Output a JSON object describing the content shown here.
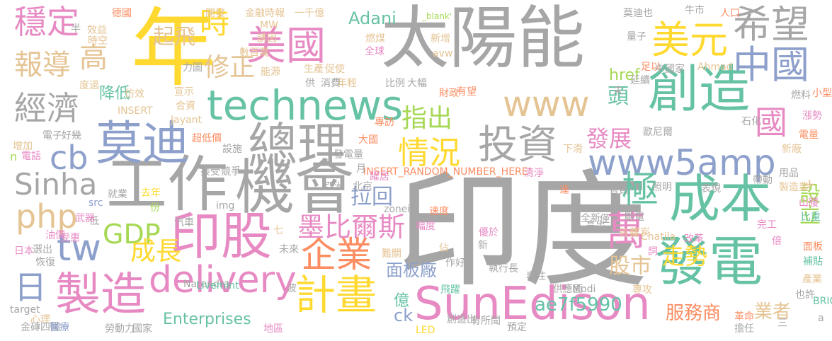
{
  "cloud": {
    "colors": {
      "gray": "#a6a6a6",
      "green": "#66c2a5",
      "orange": "#fc8d62",
      "blue": "#8da0cb",
      "pink": "#e78ac3",
      "lime": "#a6d854",
      "yellow": "#ffd92f",
      "tan": "#e5c494"
    },
    "words": [
      {
        "text": "印度",
        "color": "gray"
      },
      {
        "text": "太陽能",
        "color": "gray"
      },
      {
        "text": "年",
        "color": "yellow"
      },
      {
        "text": "發電",
        "color": "green"
      },
      {
        "text": "工作",
        "color": "gray"
      },
      {
        "text": "機會",
        "color": "gray"
      },
      {
        "text": "technews",
        "color": "green"
      },
      {
        "text": "總理",
        "color": "gray"
      },
      {
        "text": "莫迪",
        "color": "blue"
      },
      {
        "text": "創造",
        "color": "green"
      },
      {
        "text": "成本",
        "color": "green"
      },
      {
        "text": "印股",
        "color": "pink"
      },
      {
        "text": "SunEdison",
        "color": "pink"
      },
      {
        "text": "delivery",
        "color": "pink"
      },
      {
        "text": "製造",
        "color": "pink"
      },
      {
        "text": "www5amp",
        "color": "blue"
      },
      {
        "text": "www",
        "color": "tan"
      },
      {
        "text": "美國",
        "color": "pink"
      },
      {
        "text": "美元",
        "color": "yellow"
      },
      {
        "text": "希望",
        "color": "gray"
      },
      {
        "text": "中國",
        "color": "blue"
      },
      {
        "text": "投資",
        "color": "gray"
      },
      {
        "text": "計畫",
        "color": "yellow"
      },
      {
        "text": "企業",
        "color": "orange"
      },
      {
        "text": "穩定",
        "color": "pink"
      },
      {
        "text": "經濟",
        "color": "gray"
      },
      {
        "text": "報導",
        "color": "tan"
      },
      {
        "text": "高",
        "color": "tan"
      },
      {
        "text": "時",
        "color": "yellow"
      },
      {
        "text": "修正",
        "color": "tan"
      },
      {
        "text": "起飛",
        "color": "tan"
      },
      {
        "text": "php",
        "color": "tan"
      },
      {
        "text": "Sinha",
        "color": "gray"
      },
      {
        "text": "cb",
        "color": "blue"
      },
      {
        "text": "tw",
        "color": "blue"
      },
      {
        "text": "日",
        "color": "blue"
      },
      {
        "text": "GDP",
        "color": "lime"
      },
      {
        "text": "成長",
        "color": "yellow"
      },
      {
        "text": "情況",
        "color": "yellow"
      },
      {
        "text": "指出",
        "color": "lime"
      },
      {
        "text": "墨比爾斯",
        "color": "pink"
      },
      {
        "text": "拉回",
        "color": "blue"
      },
      {
        "text": "萬",
        "color": "pink"
      },
      {
        "text": "極",
        "color": "green"
      },
      {
        "text": "國",
        "color": "pink"
      },
      {
        "text": "頭",
        "color": "green"
      },
      {
        "text": "發展",
        "color": "pink"
      },
      {
        "text": "股市",
        "color": "tan"
      },
      {
        "text": "走勢",
        "color": "yellow"
      },
      {
        "text": "ae7f5990",
        "color": "green"
      },
      {
        "text": "服務商",
        "color": "orange"
      },
      {
        "text": "業者",
        "color": "tan"
      },
      {
        "text": "設立",
        "color": "lime"
      },
      {
        "text": "面板廠",
        "color": "blue"
      },
      {
        "text": "Enterprises",
        "color": "green"
      },
      {
        "text": "Adani",
        "color": "green"
      },
      {
        "text": "href",
        "color": "lime"
      },
      {
        "text": "降低",
        "color": "green"
      },
      {
        "text": "ck",
        "color": "blue"
      },
      {
        "text": "億",
        "color": "green"
      },
      {
        "text": "INSERT_RANDOM_NUMBER_HERE'",
        "color": "orange"
      },
      {
        "text": "開發",
        "color": "tan"
      },
      {
        "text": "金融時報",
        "color": "tan"
      },
      {
        "text": "一千億",
        "color": "tan"
      },
      {
        "text": "_blank'",
        "color": "lime"
      },
      {
        "text": "莫迪也",
        "color": "gray"
      },
      {
        "text": "牛市",
        "color": "gray"
      },
      {
        "text": "人口",
        "color": "orange"
      },
      {
        "text": "德國",
        "color": "orange"
      },
      {
        "text": "半",
        "color": "gray"
      },
      {
        "text": "效益",
        "color": "tan"
      },
      {
        "text": "時空",
        "color": "tan"
      },
      {
        "text": "MW",
        "color": "tan"
      },
      {
        "text": "誘因",
        "color": "tan"
      },
      {
        "text": "數百萬",
        "color": "tan"
      },
      {
        "text": "燃煤",
        "color": "tan"
      },
      {
        "text": "全球",
        "color": "pink"
      },
      {
        "text": "新增",
        "color": "tan"
      },
      {
        "text": "avw",
        "color": "tan"
      },
      {
        "text": "量子",
        "color": "gray"
      },
      {
        "text": "力圖",
        "color": "gray"
      },
      {
        "text": "能源",
        "color": "tan"
      },
      {
        "text": "生產",
        "color": "tan"
      },
      {
        "text": "促使",
        "color": "tan"
      },
      {
        "text": "年輕",
        "color": "tan"
      },
      {
        "text": "足以",
        "color": "orange"
      },
      {
        "text": "中國家",
        "color": "gray"
      },
      {
        "text": "Ahmad",
        "color": "tan"
      },
      {
        "text": "度過",
        "color": "tan"
      },
      {
        "text": "仿效",
        "color": "tan"
      },
      {
        "text": "宣示",
        "color": "tan"
      },
      {
        "text": "合資",
        "color": "tan"
      },
      {
        "text": "INSERT",
        "color": "tan"
      },
      {
        "text": "供",
        "color": "gray"
      },
      {
        "text": "消費",
        "color": "gray"
      },
      {
        "text": "比例",
        "color": "gray"
      },
      {
        "text": "大幅",
        "color": "gray"
      },
      {
        "text": "財政",
        "color": "orange"
      },
      {
        "text": "有望",
        "color": "orange"
      },
      {
        "text": "未",
        "color": "gray"
      },
      {
        "text": "延續",
        "color": "gray"
      },
      {
        "text": "燃料",
        "color": "gray"
      },
      {
        "text": "小型",
        "color": "orange"
      },
      {
        "text": "Jayant",
        "color": "tan"
      },
      {
        "text": "電子",
        "color": "gray"
      },
      {
        "text": "好幾",
        "color": "gray"
      },
      {
        "text": "超低價",
        "color": "orange"
      },
      {
        "text": "設施",
        "color": "gray"
      },
      {
        "text": "大國",
        "color": "orange"
      },
      {
        "text": "專訪",
        "color": "orange"
      },
      {
        "text": "發電量",
        "color": "gray"
      },
      {
        "text": "月",
        "color": "gray"
      },
      {
        "text": "躍居",
        "color": "pink"
      },
      {
        "text": "歐尼爾",
        "color": "gray"
      },
      {
        "text": "石化",
        "color": "gray"
      },
      {
        "text": "漲勢",
        "color": "pink"
      },
      {
        "text": "電量",
        "color": "orange"
      },
      {
        "text": "增加",
        "color": "tan"
      },
      {
        "text": "n",
        "color": "lime"
      },
      {
        "text": "電話",
        "color": "pink"
      },
      {
        "text": "下滑",
        "color": "tan"
      },
      {
        "text": "新廠",
        "color": "tan"
      },
      {
        "text": "接受",
        "color": "gray"
      },
      {
        "text": "競爭",
        "color": "gray"
      },
      {
        "text": "亞洲",
        "color": "gray"
      },
      {
        "text": "北京",
        "color": "gray"
      },
      {
        "text": "清淨",
        "color": "pink"
      },
      {
        "text": "達",
        "color": "orange"
      },
      {
        "text": "官員",
        "color": "gray"
      },
      {
        "text": "照明",
        "color": "gray"
      },
      {
        "text": "表現",
        "color": "gray"
      },
      {
        "text": "帶動",
        "color": "gray"
      },
      {
        "text": "用品",
        "color": "gray"
      },
      {
        "text": "製造業",
        "color": "tan"
      },
      {
        "text": "山腰",
        "color": "pink"
      },
      {
        "text": "就業",
        "color": "gray"
      },
      {
        "text": "去年",
        "color": "yellow"
      },
      {
        "text": "src",
        "color": "blue"
      },
      {
        "text": "低",
        "color": "gray"
      },
      {
        "text": "武器",
        "color": "pink"
      },
      {
        "text": "份",
        "color": "lime"
      },
      {
        "text": "img",
        "color": "gray"
      },
      {
        "text": "zoneid",
        "color": "gray"
      },
      {
        "text": "汽車",
        "color": "gray"
      },
      {
        "text": "速度",
        "color": "orange"
      },
      {
        "text": "全新",
        "color": "gray"
      },
      {
        "text": "僅",
        "color": "gray"
      },
      {
        "text": "斷電",
        "color": "gray"
      },
      {
        "text": "煤炭",
        "color": "tan"
      },
      {
        "text": "比重",
        "color": "green"
      },
      {
        "text": "油價",
        "color": "pink"
      },
      {
        "text": "受惠",
        "color": "pink"
      },
      {
        "text": "七",
        "color": "tan"
      },
      {
        "text": "幅度",
        "color": "pink"
      },
      {
        "text": "優於",
        "color": "pink"
      },
      {
        "text": "新",
        "color": "gray"
      },
      {
        "text": "高出",
        "color": "gray"
      },
      {
        "text": "背景",
        "color": "tan"
      },
      {
        "text": "Chatila",
        "color": "tan"
      },
      {
        "text": "改革",
        "color": "pink"
      },
      {
        "text": "完工",
        "color": "pink"
      },
      {
        "text": "倍",
        "color": "pink"
      },
      {
        "text": "日本",
        "color": "pink"
      },
      {
        "text": "選出",
        "color": "gray"
      },
      {
        "text": "恢復",
        "color": "gray"
      },
      {
        "text": "未來",
        "color": "gray"
      },
      {
        "text": "難關",
        "color": "tan"
      },
      {
        "text": "佔",
        "color": "tan"
      },
      {
        "text": "詞",
        "color": "pink"
      },
      {
        "text": "面板",
        "color": "orange"
      },
      {
        "text": "補貼",
        "color": "green"
      },
      {
        "text": "產業",
        "color": "tan"
      },
      {
        "text": "執行長",
        "color": "gray"
      },
      {
        "text": "作好",
        "color": "gray"
      },
      {
        "text": "專注",
        "color": "gray"
      },
      {
        "text": "Narendra",
        "color": "gray"
      },
      {
        "text": "Livemint",
        "color": "green"
      },
      {
        "text": "波",
        "color": "gray"
      },
      {
        "text": "飛躍",
        "color": "green"
      },
      {
        "text": "供應面",
        "color": "gray"
      },
      {
        "text": "Modi",
        "color": "gray"
      },
      {
        "text": "專攻",
        "color": "tan"
      },
      {
        "text": "也許",
        "color": "gray"
      },
      {
        "text": "BRIC",
        "color": "green"
      },
      {
        "text": "target",
        "color": "gray"
      },
      {
        "text": "心理",
        "color": "tan"
      },
      {
        "text": "金磚四國",
        "color": "gray"
      },
      {
        "text": "醫療",
        "color": "blue"
      },
      {
        "text": "勞動力",
        "color": "gray"
      },
      {
        "text": "國家",
        "color": "gray"
      },
      {
        "text": "地區",
        "color": "pink"
      },
      {
        "text": "LED",
        "color": "yellow"
      },
      {
        "text": "創造出",
        "color": "gray"
      },
      {
        "text": "有所聞",
        "color": "gray"
      },
      {
        "text": "預定",
        "color": "gray"
      },
      {
        "text": "革命",
        "color": "orange"
      },
      {
        "text": "擔任",
        "color": "gray"
      },
      {
        "text": "三",
        "color": "gray"
      },
      {
        "text": "a",
        "color": "gray"
      },
      {
        "text": "+",
        "color": "tan"
      }
    ]
  }
}
